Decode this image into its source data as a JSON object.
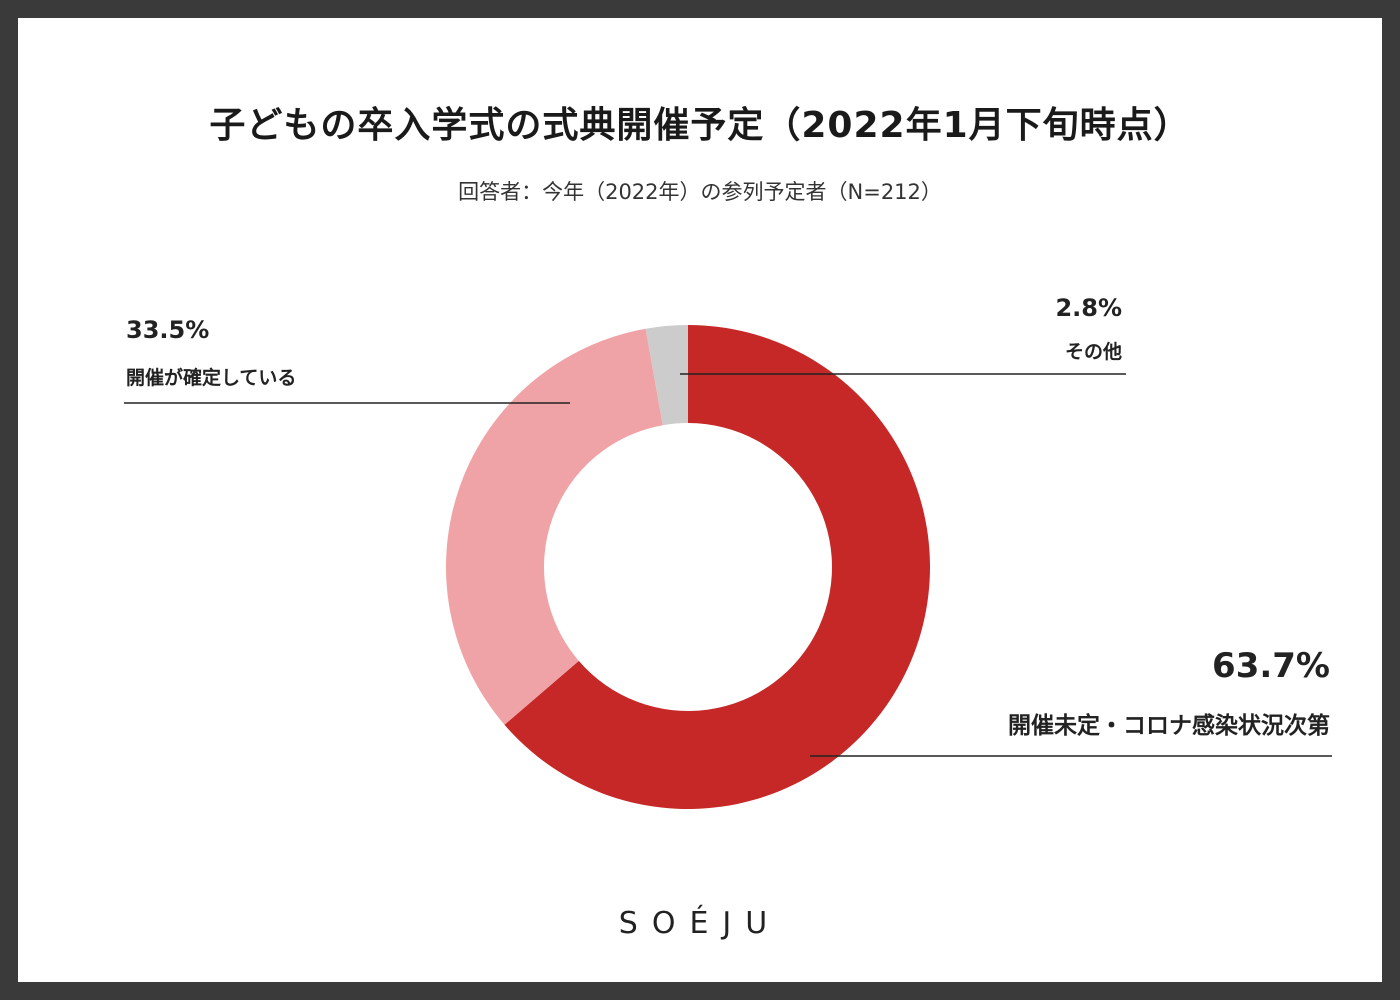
{
  "title": "子どもの卒入学式の式典開催予定（2022年1月下旬時点）",
  "subtitle": "回答者：今年（2022年）の参列予定者（N=212）",
  "chart_data": {
    "type": "pie",
    "donut": true,
    "title": "子どもの卒入学式の式典開催予定（2022年1月下旬時点）",
    "subtitle": "回答者：今年（2022年）の参列予定者（N=212）",
    "slices": [
      {
        "label": "開催未定・コロナ感染状況次第",
        "value": 63.7,
        "value_label": "63.7%",
        "color": "#c62828"
      },
      {
        "label": "開催が確定している",
        "value": 33.5,
        "value_label": "33.5%",
        "color": "#f0a3a7"
      },
      {
        "label": "その他",
        "value": 2.8,
        "value_label": "2.8%",
        "color": "#cccccc"
      }
    ],
    "start_angle_deg": 0,
    "direction": "clockwise"
  },
  "logo": "SOÉJU"
}
